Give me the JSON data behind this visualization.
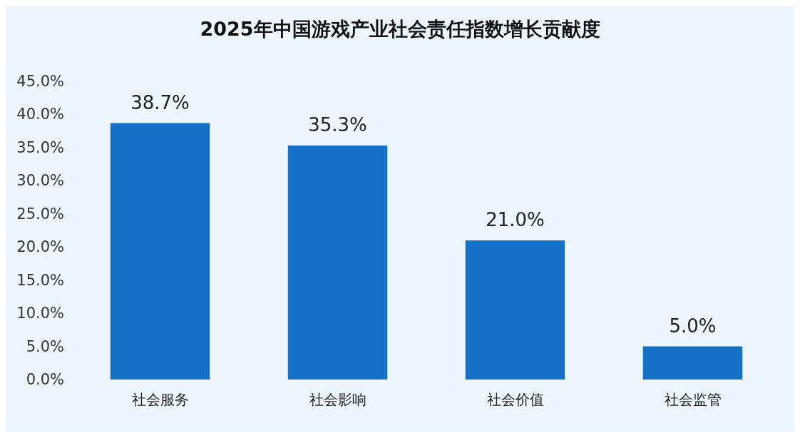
{
  "chart_data": {
    "type": "bar",
    "title": "2025年中国游戏产业社会责任指数增长贡献度",
    "categories": [
      "社会服务",
      "社会影响",
      "社会价值",
      "社会监管"
    ],
    "values": [
      38.7,
      35.3,
      21.0,
      5.0
    ],
    "value_labels": [
      "38.7%",
      "35.3%",
      "21.0%",
      "5.0%"
    ],
    "color": "#1570c8",
    "ylim": [
      0,
      45
    ],
    "yticks": [
      {
        "value": 0,
        "label": "0.0%"
      },
      {
        "value": 5,
        "label": "5.0%"
      },
      {
        "value": 10,
        "label": "10.0%"
      },
      {
        "value": 15,
        "label": "15.0%"
      },
      {
        "value": 20,
        "label": "20.0%"
      },
      {
        "value": 25,
        "label": "25.0%"
      },
      {
        "value": 30,
        "label": "30.0%"
      },
      {
        "value": 35,
        "label": "35.0%"
      },
      {
        "value": 40,
        "label": "40.0%"
      },
      {
        "value": 45,
        "label": "45.0%"
      }
    ],
    "grid": false
  }
}
